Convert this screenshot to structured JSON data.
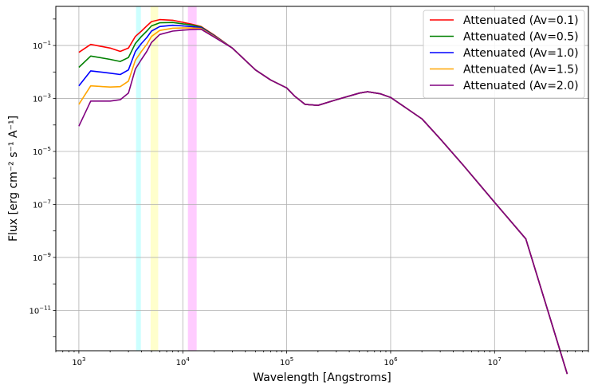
{
  "chart_data": {
    "type": "line",
    "xlabel": "Wavelength [Angstroms]",
    "ylabel": "Flux [erg cm⁻² s⁻¹ A⁻¹]",
    "x_scale": "log",
    "y_scale": "log",
    "xlim": [
      600,
      80000000
    ],
    "ylim": [
      3e-13,
      3
    ],
    "grid": true,
    "legend_position": "top-right",
    "x_ticks": [
      {
        "value": 1000,
        "base": "10",
        "exp": "3"
      },
      {
        "value": 10000,
        "base": "10",
        "exp": "4"
      },
      {
        "value": 100000,
        "base": "10",
        "exp": "5"
      },
      {
        "value": 1000000,
        "base": "10",
        "exp": "6"
      },
      {
        "value": 10000000,
        "base": "10",
        "exp": "7"
      }
    ],
    "y_ticks": [
      {
        "value": 0.1,
        "base": "10",
        "exp": "−1"
      },
      {
        "value": 0.001,
        "base": "10",
        "exp": "−3"
      },
      {
        "value": 1e-05,
        "base": "10",
        "exp": "−5"
      },
      {
        "value": 1e-07,
        "base": "10",
        "exp": "−7"
      },
      {
        "value": 1e-09,
        "base": "10",
        "exp": "−9"
      },
      {
        "value": 1e-11,
        "base": "10",
        "exp": "−11"
      }
    ],
    "bands": [
      {
        "xmin": 3550,
        "xmax": 3950,
        "color": "#00ffff"
      },
      {
        "xmin": 4900,
        "xmax": 5800,
        "color": "#ffff00"
      },
      {
        "xmin": 11200,
        "xmax": 13600,
        "color": "#ff00ff"
      }
    ],
    "x": [
      1000,
      1300,
      2000,
      2500,
      3000,
      3500,
      4000,
      4500,
      5000,
      6000,
      8000,
      10000,
      12000,
      15000,
      20000,
      30000,
      50000,
      70000,
      100000,
      120000,
      150000,
      200000,
      300000,
      500000,
      600000,
      800000,
      1000000,
      2000000,
      3000000,
      5000000,
      10000000,
      20000000,
      50000000
    ],
    "series": [
      {
        "name": "Attenuated (Av=0.1)",
        "color": "#ff0000",
        "values": [
          0.055,
          0.11,
          0.08,
          0.06,
          0.08,
          0.22,
          0.35,
          0.55,
          0.8,
          0.95,
          0.9,
          0.75,
          0.65,
          0.52,
          0.25,
          0.08,
          0.012,
          0.005,
          0.0025,
          0.0012,
          0.0006,
          0.00055,
          0.0009,
          0.0016,
          0.0018,
          0.0015,
          0.0011,
          0.00017,
          3e-05,
          3e-06,
          1.2e-07,
          5e-09,
          4e-14
        ]
      },
      {
        "name": "Attenuated (Av=0.5)",
        "color": "#008000",
        "values": [
          0.015,
          0.04,
          0.03,
          0.025,
          0.035,
          0.12,
          0.22,
          0.35,
          0.55,
          0.72,
          0.74,
          0.66,
          0.6,
          0.5,
          0.24,
          0.08,
          0.012,
          0.005,
          0.0025,
          0.0012,
          0.0006,
          0.00055,
          0.0009,
          0.0016,
          0.0018,
          0.0015,
          0.0011,
          0.00017,
          3e-05,
          3e-06,
          1.2e-07,
          5e-09,
          4e-14
        ]
      },
      {
        "name": "Attenuated (Av=1.0)",
        "color": "#0000ff",
        "values": [
          0.003,
          0.011,
          0.009,
          0.008,
          0.012,
          0.06,
          0.12,
          0.2,
          0.35,
          0.52,
          0.58,
          0.55,
          0.52,
          0.47,
          0.23,
          0.08,
          0.012,
          0.005,
          0.0025,
          0.0012,
          0.0006,
          0.00055,
          0.0009,
          0.0016,
          0.0018,
          0.0015,
          0.0011,
          0.00017,
          3e-05,
          3e-06,
          1.2e-07,
          5e-09,
          4e-14
        ]
      },
      {
        "name": "Attenuated (Av=1.5)",
        "color": "#ffa500",
        "values": [
          0.0006,
          0.003,
          0.0027,
          0.0028,
          0.0045,
          0.028,
          0.06,
          0.11,
          0.22,
          0.37,
          0.45,
          0.46,
          0.46,
          0.44,
          0.22,
          0.08,
          0.012,
          0.005,
          0.0025,
          0.0012,
          0.0006,
          0.00055,
          0.0009,
          0.0016,
          0.0018,
          0.0015,
          0.0011,
          0.00017,
          3e-05,
          3e-06,
          1.2e-07,
          5e-09,
          4e-14
        ]
      },
      {
        "name": "Attenuated (Av=2.0)",
        "color": "#800080",
        "values": [
          9e-05,
          0.0008,
          0.0008,
          0.0009,
          0.0016,
          0.013,
          0.03,
          0.06,
          0.13,
          0.26,
          0.35,
          0.38,
          0.4,
          0.41,
          0.21,
          0.08,
          0.012,
          0.005,
          0.0025,
          0.0012,
          0.0006,
          0.00055,
          0.0009,
          0.0016,
          0.0018,
          0.0015,
          0.0011,
          0.00017,
          3e-05,
          3e-06,
          1.2e-07,
          5e-09,
          4e-14
        ]
      }
    ]
  }
}
